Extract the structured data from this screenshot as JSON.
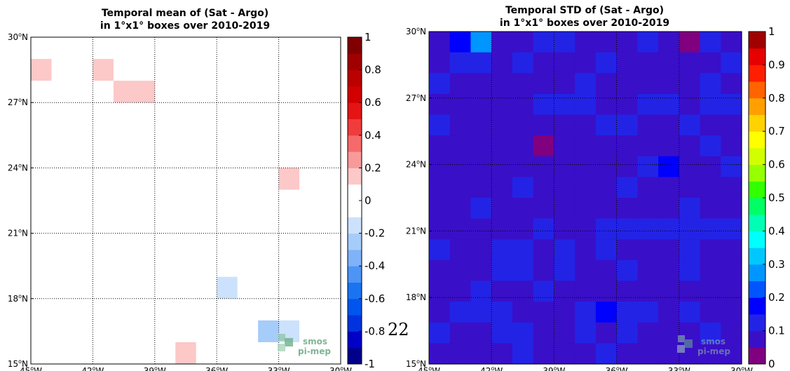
{
  "chart_data": [
    {
      "type": "heatmap",
      "title": "Temporal mean of (Sat - Argo)",
      "subtitle": "in 1°x1° boxes over 2010-2019",
      "xlim": [
        -45,
        -30
      ],
      "ylim": [
        15,
        30
      ],
      "grid": true,
      "x_ticks": [
        -45,
        -42,
        -39,
        -36,
        -33,
        -30
      ],
      "x_tick_labels": [
        "45°W",
        "42°W",
        "39°W",
        "36°W",
        "33°W",
        "30°W"
      ],
      "y_ticks": [
        15,
        18,
        21,
        24,
        27,
        30
      ],
      "y_tick_labels": [
        "15°N",
        "18°N",
        "21°N",
        "24°N",
        "27°N",
        "30°N"
      ],
      "colorbar": {
        "range": [
          -1,
          1
        ],
        "tick_values": [
          1,
          0.8,
          0.6,
          0.4,
          0.2,
          0,
          -0.2,
          -0.4,
          -0.6,
          -0.8,
          -1
        ],
        "tick_labels": [
          "1",
          "0.8",
          "0.6",
          "0.4",
          "0.2",
          "0",
          "-0.2",
          "-0.4",
          "-0.6",
          "-0.8",
          "-1"
        ],
        "colors": [
          "#00008b",
          "#0000c8",
          "#0033dd",
          "#0055ee",
          "#1a74f2",
          "#4d94f5",
          "#7fb2f8",
          "#a6ccfa",
          "#cce1fc",
          "#ffffff",
          "#ffffff",
          "#fcc8c8",
          "#f99a9a",
          "#f56a6a",
          "#f03c3c",
          "#e51414",
          "#d20000",
          "#bb0000",
          "#a00000",
          "#800000"
        ]
      },
      "cells": [
        {
          "lon": -45,
          "lat": 28,
          "value": 0.15
        },
        {
          "lon": -42,
          "lat": 28,
          "value": 0.15
        },
        {
          "lon": -41,
          "lat": 27,
          "value": 0.15
        },
        {
          "lon": -40,
          "lat": 27,
          "value": 0.15
        },
        {
          "lon": -33,
          "lat": 23,
          "value": 0.15
        },
        {
          "lon": -36,
          "lat": 18,
          "value": -0.15
        },
        {
          "lon": -34,
          "lat": 16,
          "value": -0.3
        },
        {
          "lon": -33,
          "lat": 16,
          "value": -0.15
        },
        {
          "lon": -38,
          "lat": 15,
          "value": 0.15
        }
      ]
    },
    {
      "type": "heatmap",
      "title": "Temporal STD of (Sat - Argo)",
      "subtitle": "in 1°x1° boxes over 2010-2019",
      "xlim": [
        -45,
        -30
      ],
      "ylim": [
        15,
        30
      ],
      "grid": true,
      "x_ticks": [
        -45,
        -42,
        -39,
        -36,
        -33,
        -30
      ],
      "x_tick_labels": [
        "45°W",
        "42°W",
        "39°W",
        "36°W",
        "33°W",
        "30°W"
      ],
      "y_ticks": [
        15,
        18,
        21,
        24,
        27,
        30
      ],
      "y_tick_labels": [
        "15°N",
        "18°N",
        "21°N",
        "24°N",
        "27°N",
        "30°N"
      ],
      "colorbar": {
        "range": [
          0,
          1
        ],
        "tick_values": [
          1,
          0.9,
          0.8,
          0.7,
          0.6,
          0.5,
          0.4,
          0.3,
          0.2,
          0.1,
          0
        ],
        "tick_labels": [
          "1",
          "0.9",
          "0.8",
          "0.7",
          "0.6",
          "0.5",
          "0.4",
          "0.3",
          "0.2",
          "0.1",
          "0"
        ],
        "colors": [
          "#800080",
          "#3a0fc8",
          "#2323e6",
          "#0000ff",
          "#0055ff",
          "#0096ff",
          "#00c8ff",
          "#00ffff",
          "#00ffb4",
          "#00ff64",
          "#32ff00",
          "#96ff00",
          "#d2ff00",
          "#ffff00",
          "#ffd200",
          "#ffa000",
          "#ff6400",
          "#ff1e00",
          "#e60000",
          "#a00000"
        ]
      },
      "grid_values": [
        [
          0.07,
          0.18,
          0.25,
          0.08,
          0.07,
          0.1,
          0.1,
          0.09,
          0.07,
          0.09,
          0.1,
          0.07,
          0.02,
          0.11,
          0.08
        ],
        [
          0.09,
          0.12,
          0.12,
          0.08,
          0.11,
          0.09,
          0.09,
          0.09,
          0.11,
          0.09,
          0.08,
          0.07,
          0.09,
          0.08,
          0.11
        ],
        [
          0.1,
          0.09,
          0.09,
          0.09,
          0.09,
          0.09,
          0.08,
          0.1,
          0.09,
          0.08,
          0.08,
          0.08,
          0.08,
          0.1,
          0.09
        ],
        [
          0.09,
          0.08,
          0.08,
          0.09,
          0.09,
          0.12,
          0.12,
          0.11,
          0.09,
          0.08,
          0.11,
          0.11,
          0.08,
          0.11,
          0.11
        ],
        [
          0.1,
          0.09,
          0.08,
          0.09,
          0.08,
          0.09,
          0.09,
          0.08,
          0.11,
          0.1,
          0.09,
          0.08,
          0.1,
          0.08,
          0.09
        ],
        [
          0.09,
          0.09,
          0.09,
          0.09,
          0.09,
          0.04,
          0.08,
          0.08,
          0.09,
          0.09,
          0.09,
          0.08,
          0.08,
          0.12,
          0.09
        ],
        [
          0.09,
          0.09,
          0.09,
          0.08,
          0.08,
          0.09,
          0.09,
          0.09,
          0.08,
          0.09,
          0.11,
          0.16,
          0.09,
          0.09,
          0.1
        ],
        [
          0.09,
          0.09,
          0.09,
          0.09,
          0.1,
          0.09,
          0.08,
          0.09,
          0.09,
          0.11,
          0.08,
          0.09,
          0.09,
          0.09,
          0.09
        ],
        [
          0.09,
          0.08,
          0.11,
          0.09,
          0.09,
          0.09,
          0.09,
          0.09,
          0.08,
          0.09,
          0.09,
          0.09,
          0.1,
          0.09,
          0.09
        ],
        [
          0.09,
          0.09,
          0.09,
          0.09,
          0.09,
          0.1,
          0.09,
          0.09,
          0.1,
          0.1,
          0.1,
          0.1,
          0.1,
          0.1,
          0.1
        ],
        [
          0.1,
          0.09,
          0.08,
          0.1,
          0.1,
          0.09,
          0.1,
          0.09,
          0.11,
          0.09,
          0.09,
          0.09,
          0.1,
          0.08,
          0.09
        ],
        [
          0.09,
          0.08,
          0.09,
          0.1,
          0.1,
          0.08,
          0.12,
          0.08,
          0.09,
          0.1,
          0.09,
          0.08,
          0.1,
          0.09,
          0.08
        ],
        [
          0.08,
          0.09,
          0.11,
          0.09,
          0.08,
          0.11,
          0.09,
          0.08,
          0.08,
          0.09,
          0.09,
          0.09,
          0.09,
          0.09,
          0.08
        ],
        [
          0.09,
          0.11,
          0.1,
          0.1,
          0.06,
          0.09,
          0.09,
          0.12,
          0.17,
          0.1,
          0.1,
          0.09,
          0.1,
          0.09,
          0.08
        ],
        [
          0.1,
          0.08,
          0.08,
          0.11,
          0.11,
          0.08,
          0.09,
          0.1,
          0.09,
          0.11,
          0.09,
          0.08,
          0.06,
          0.1,
          0.09
        ],
        [
          0.09,
          0.08,
          0.09,
          0.09,
          0.1,
          0.09,
          0.09,
          0.09,
          0.1,
          0.09,
          0.09,
          0.06,
          0.09,
          0.08,
          0.09
        ]
      ]
    }
  ],
  "logo": {
    "line1": "smos",
    "line2": "pi-mep"
  },
  "page_number": "22"
}
